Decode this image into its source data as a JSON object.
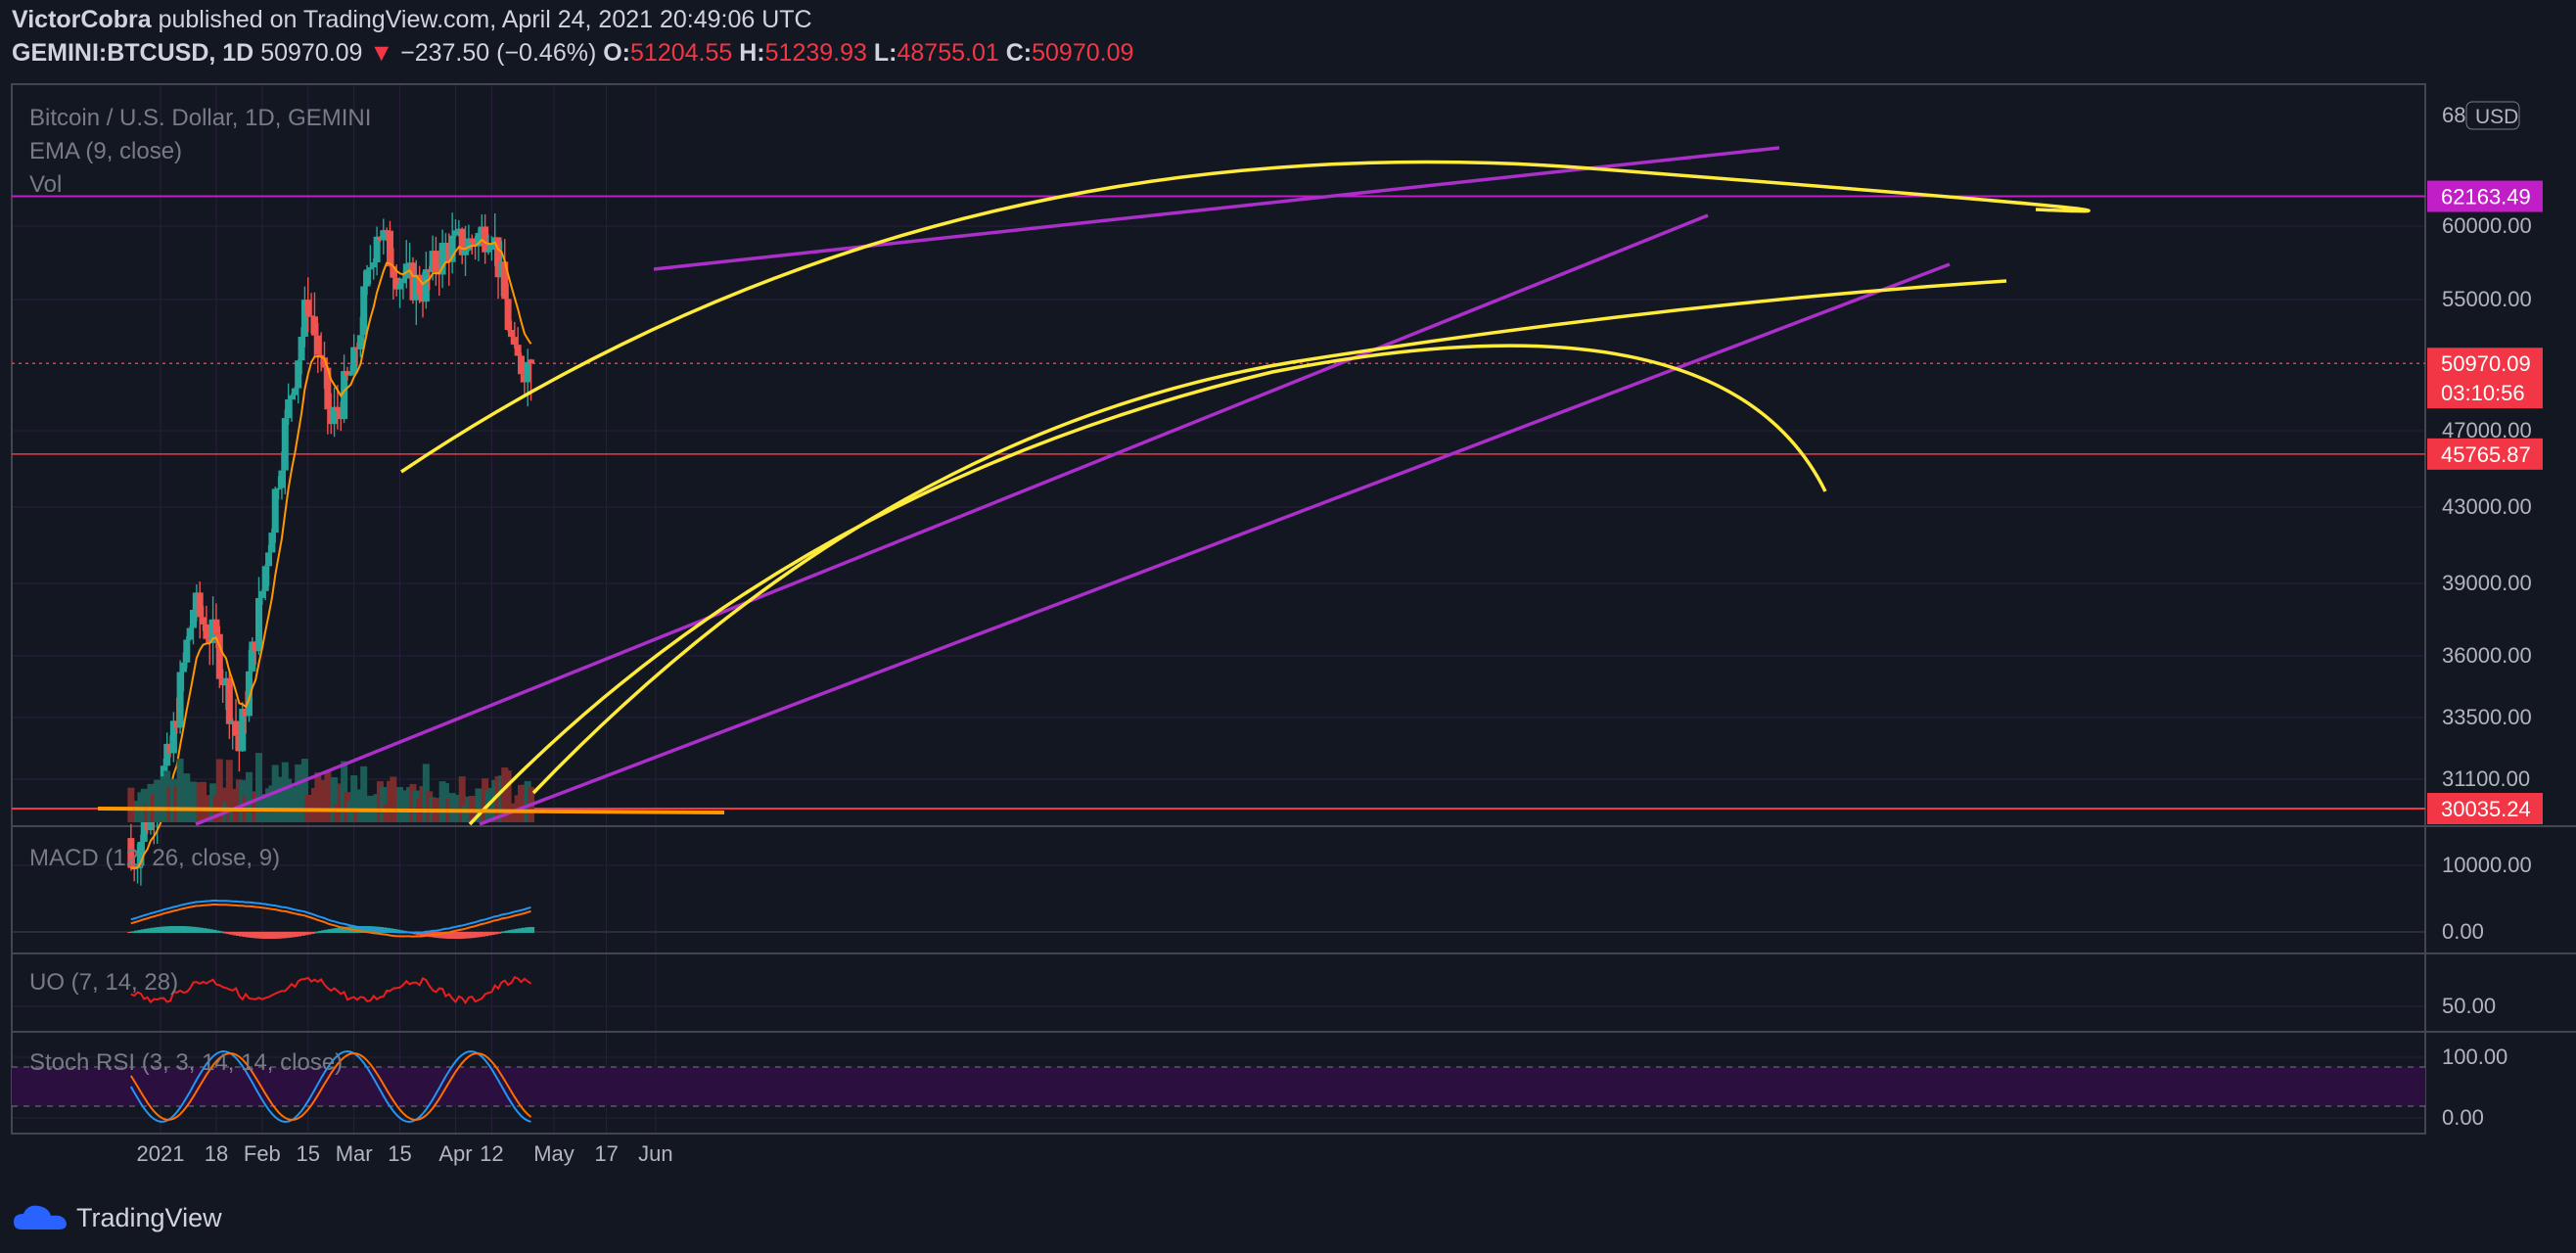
{
  "header": {
    "author": "VictorCobra",
    "published": "published on TradingView.com, April 24, 2021 20:49:06 UTC",
    "symbol": "GEMINI:BTCUSD, 1D",
    "last": "50970.09",
    "change_arrow": "▼",
    "change": "−237.50 (−0.46%)",
    "open_label": "O:",
    "open": "51204.55",
    "high_label": "H:",
    "high": "51239.93",
    "low_label": "L:",
    "low": "48755.01",
    "close_label": "C:",
    "close": "50970.09"
  },
  "legend": {
    "title": "Bitcoin / U.S. Dollar, 1D, GEMINI",
    "ema": "EMA (9, close)",
    "vol": "Vol",
    "macd": "MACD (12, 26, close, 9)",
    "uo": "UO (7, 14, 28)",
    "stoch": "Stoch RSI (3, 3, 14, 14, close)"
  },
  "currency_badge": "USD",
  "price_axis": [
    "68",
    "60000.00",
    "55000.00",
    "47000.00",
    "43000.00",
    "39000.00",
    "36000.00",
    "33500.00",
    "31100.00"
  ],
  "price_tags": [
    {
      "label": "62163.49",
      "color": "#c21ec8"
    },
    {
      "label": "50970.09",
      "color": "#f23645"
    },
    {
      "label": "03:10:56",
      "color": "#f23645"
    },
    {
      "label": "45765.87",
      "color": "#f23645"
    },
    {
      "label": "30035.24",
      "color": "#f23645"
    }
  ],
  "macd_axis": [
    "10000.00",
    "0.00"
  ],
  "uo_axis": [
    "50.00"
  ],
  "stoch_axis": [
    "100.00",
    "0.00"
  ],
  "time_axis": [
    "2021",
    "18",
    "Feb",
    "15",
    "Mar",
    "15",
    "Apr",
    "12",
    "May",
    "17",
    "Jun"
  ],
  "branding": "TradingView",
  "colors": {
    "background": "#131722",
    "up": "#26a69a",
    "down": "#ef5350",
    "ema": "#ff9800",
    "trendline": "#ab2fc9",
    "curve": "#ffeb3b",
    "macd": "#2196f3",
    "signal": "#ff6d00",
    "uo": "#e91e1e",
    "stoch_band": "#2a0f3f"
  },
  "chart_data": {
    "type": "candlestick",
    "title": "Bitcoin / U.S. Dollar, 1D, GEMINI",
    "x_range": [
      "2020-12-23",
      "2021-06-15"
    ],
    "y_scale": "log",
    "ylim": [
      29000,
      69000
    ],
    "horizontal_levels": [
      62163.49,
      50970.09,
      45765.87,
      30035.24
    ],
    "weekly_close_approx": [
      {
        "date": "2021-01-04",
        "close": 32000
      },
      {
        "date": "2021-01-11",
        "close": 38200
      },
      {
        "date": "2021-01-18",
        "close": 36500
      },
      {
        "date": "2021-01-25",
        "close": 32200
      },
      {
        "date": "2021-02-01",
        "close": 38900
      },
      {
        "date": "2021-02-08",
        "close": 47200
      },
      {
        "date": "2021-02-15",
        "close": 55000
      },
      {
        "date": "2021-02-22",
        "close": 47300
      },
      {
        "date": "2021-03-01",
        "close": 50800
      },
      {
        "date": "2021-03-08",
        "close": 60000
      },
      {
        "date": "2021-03-15",
        "close": 56500
      },
      {
        "date": "2021-03-22",
        "close": 55800
      },
      {
        "date": "2021-03-29",
        "close": 58500
      },
      {
        "date": "2021-04-05",
        "close": 58800
      },
      {
        "date": "2021-04-12",
        "close": 60000
      },
      {
        "date": "2021-04-19",
        "close": 50970.09
      }
    ],
    "last_candle": {
      "date": "2021-04-24",
      "open": 51204.55,
      "high": 51239.93,
      "low": 48755.01,
      "close": 50970.09
    }
  }
}
